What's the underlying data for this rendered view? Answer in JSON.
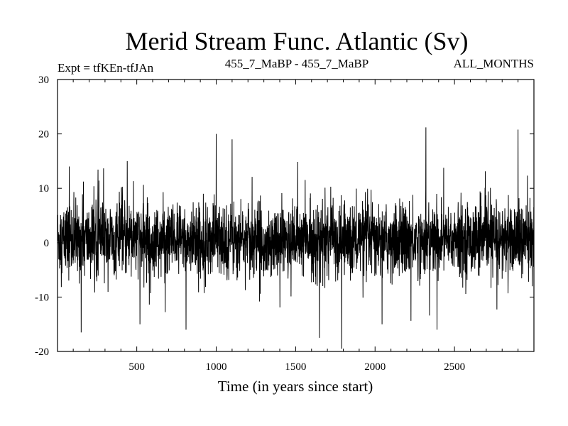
{
  "chart_data": {
    "type": "line",
    "title": "Merid Stream Func. Atlantic (Sv)",
    "subtitle_left": "Expt = tfKEn-tfJAn",
    "subtitle_center": "455_7_MaBP - 455_7_MaBP",
    "subtitle_right": "ALL_MONTHS",
    "xlabel": "Time (in years since start)",
    "ylabel": "",
    "xlim": [
      1,
      3000
    ],
    "ylim": [
      -20,
      30
    ],
    "x_ticks": [
      500,
      1000,
      1500,
      2000,
      2500
    ],
    "y_ticks": [
      -20,
      -10,
      0,
      10,
      20,
      30
    ],
    "grid": false,
    "series": [
      {
        "color": "#000000",
        "sampling": "annual, one value per year, years 1-3000",
        "mean": 0.5,
        "typical_range": [
          -8,
          9
        ],
        "notable_extremes": [
          {
            "x": 75,
            "y": 14.0
          },
          {
            "x": 150,
            "y": -16.5
          },
          {
            "x": 440,
            "y": 15.0
          },
          {
            "x": 520,
            "y": -15.0
          },
          {
            "x": 810,
            "y": -16.0
          },
          {
            "x": 1000,
            "y": 20.0
          },
          {
            "x": 1100,
            "y": 19.0
          },
          {
            "x": 1650,
            "y": -17.5
          },
          {
            "x": 1790,
            "y": -19.5
          },
          {
            "x": 2320,
            "y": 21.2
          },
          {
            "x": 2390,
            "y": -16.0
          },
          {
            "x": 2900,
            "y": 20.8
          }
        ]
      }
    ]
  }
}
